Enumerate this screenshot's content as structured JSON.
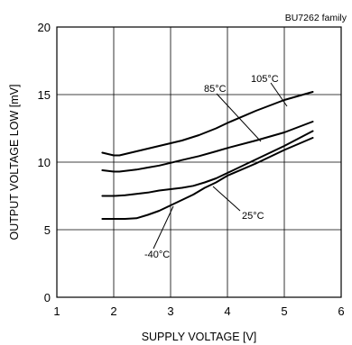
{
  "chart_data": {
    "type": "line",
    "title": "BU7262 family",
    "xlabel": "SUPPLY VOLTAGE [V]",
    "ylabel": "OUTPUT VOLTAGE LOW [mV]",
    "xlim": [
      1,
      6
    ],
    "ylim": [
      0,
      20
    ],
    "xticks": [
      1,
      2,
      3,
      4,
      5,
      6
    ],
    "yticks": [
      0,
      5,
      10,
      15,
      20
    ],
    "grid": true,
    "series": [
      {
        "name": "105°C",
        "label_text": "105°C",
        "x": [
          1.8,
          1.9,
          2.0,
          2.1,
          2.2,
          2.4,
          2.6,
          2.8,
          3.0,
          3.2,
          3.5,
          3.8,
          4.0,
          4.5,
          5.0,
          5.5
        ],
        "y": [
          10.7,
          10.6,
          10.5,
          10.5,
          10.6,
          10.8,
          11.0,
          11.2,
          11.4,
          11.6,
          12.0,
          12.5,
          12.9,
          13.8,
          14.6,
          15.2
        ]
      },
      {
        "name": "85°C",
        "label_text": "85°C",
        "x": [
          1.8,
          1.9,
          2.0,
          2.1,
          2.2,
          2.4,
          2.6,
          2.8,
          3.0,
          3.2,
          3.5,
          3.8,
          4.0,
          4.5,
          5.0,
          5.5
        ],
        "y": [
          9.4,
          9.35,
          9.3,
          9.3,
          9.35,
          9.45,
          9.6,
          9.75,
          9.95,
          10.15,
          10.45,
          10.8,
          11.05,
          11.6,
          12.2,
          13.0
        ]
      },
      {
        "name": "25°C",
        "label_text": "25°C",
        "x": [
          1.8,
          2.0,
          2.2,
          2.4,
          2.6,
          2.8,
          3.0,
          3.2,
          3.4,
          3.6,
          3.8,
          4.0,
          4.5,
          5.0,
          5.5
        ],
        "y": [
          7.5,
          7.5,
          7.55,
          7.65,
          7.75,
          7.9,
          8.0,
          8.1,
          8.25,
          8.5,
          8.8,
          9.2,
          10.2,
          11.2,
          12.3
        ]
      },
      {
        "name": "-40°C",
        "label_text": "-40°C",
        "x": [
          1.8,
          2.0,
          2.2,
          2.4,
          2.6,
          2.8,
          3.0,
          3.2,
          3.4,
          3.6,
          3.8,
          4.0,
          4.5,
          5.0,
          5.5
        ],
        "y": [
          5.8,
          5.8,
          5.8,
          5.85,
          6.1,
          6.4,
          6.8,
          7.2,
          7.6,
          8.1,
          8.5,
          9.0,
          9.9,
          10.9,
          11.8
        ]
      }
    ]
  }
}
